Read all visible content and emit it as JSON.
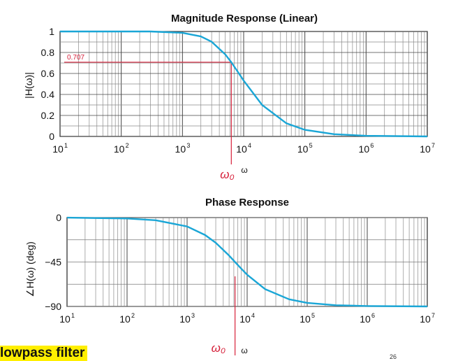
{
  "chart_data": [
    {
      "type": "line",
      "title": "Magnitude Response (Linear)",
      "xlabel": "ω",
      "ylabel": "|H(ω)|",
      "xscale": "log",
      "xlim": [
        10,
        10000000
      ],
      "ylim": [
        0,
        1
      ],
      "grid": true,
      "x_tick_labels": [
        "10",
        "10",
        "10",
        "10",
        "10",
        "10",
        "10"
      ],
      "x_tick_exponents": [
        "1",
        "2",
        "3",
        "4",
        "5",
        "6",
        "7"
      ],
      "y_ticks": [
        0,
        0.2,
        0.4,
        0.6,
        0.8,
        1
      ],
      "y_tick_labels": [
        "0",
        "0.2",
        "0.4",
        "0.6",
        "0.8",
        "1"
      ],
      "series": [
        {
          "color": "#1aa6d6",
          "x": [
            10,
            100,
            300,
            1000,
            2000,
            3000,
            5000,
            6283,
            8000,
            10000,
            20000,
            50000,
            100000,
            300000,
            1000000,
            10000000
          ],
          "y": [
            1.0,
            1.0,
            1.0,
            0.987,
            0.953,
            0.902,
            0.782,
            0.707,
            0.617,
            0.532,
            0.3,
            0.125,
            0.063,
            0.021,
            0.006,
            0.0
          ]
        }
      ],
      "annotations": {
        "level_label": "0.707",
        "level_value": 0.707,
        "omega0_label": "ω₀",
        "omega0_value": 6283,
        "annotation_color": "#d6203a"
      }
    },
    {
      "type": "line",
      "title": "Phase Response",
      "xlabel": "ω",
      "ylabel": "∠H(ω) (deg)",
      "xscale": "log",
      "xlim": [
        10,
        10000000
      ],
      "ylim": [
        -90,
        0
      ],
      "grid": true,
      "x_tick_labels": [
        "10",
        "10",
        "10",
        "10",
        "10",
        "10",
        "10"
      ],
      "x_tick_exponents": [
        "1",
        "2",
        "3",
        "4",
        "5",
        "6",
        "7"
      ],
      "y_ticks": [
        0,
        -45,
        -90
      ],
      "y_tick_labels": [
        "0",
        "−45",
        "−90"
      ],
      "series": [
        {
          "color": "#1aa6d6",
          "x": [
            10,
            100,
            300,
            1000,
            2000,
            3000,
            5000,
            6283,
            8000,
            10000,
            20000,
            50000,
            100000,
            300000,
            1000000,
            10000000
          ],
          "y": [
            -0.1,
            -0.9,
            -2.7,
            -9.0,
            -17.7,
            -25.5,
            -38.5,
            -45.0,
            -51.9,
            -57.9,
            -72.6,
            -82.8,
            -86.4,
            -88.8,
            -89.6,
            -90.0
          ]
        }
      ],
      "annotations": {
        "omega0_label": "ω₀",
        "omega0_value": 6283,
        "annotation_color": "#d6203a"
      }
    }
  ],
  "footer": {
    "highlight_text": "lowpass filter",
    "page_number": "26"
  }
}
